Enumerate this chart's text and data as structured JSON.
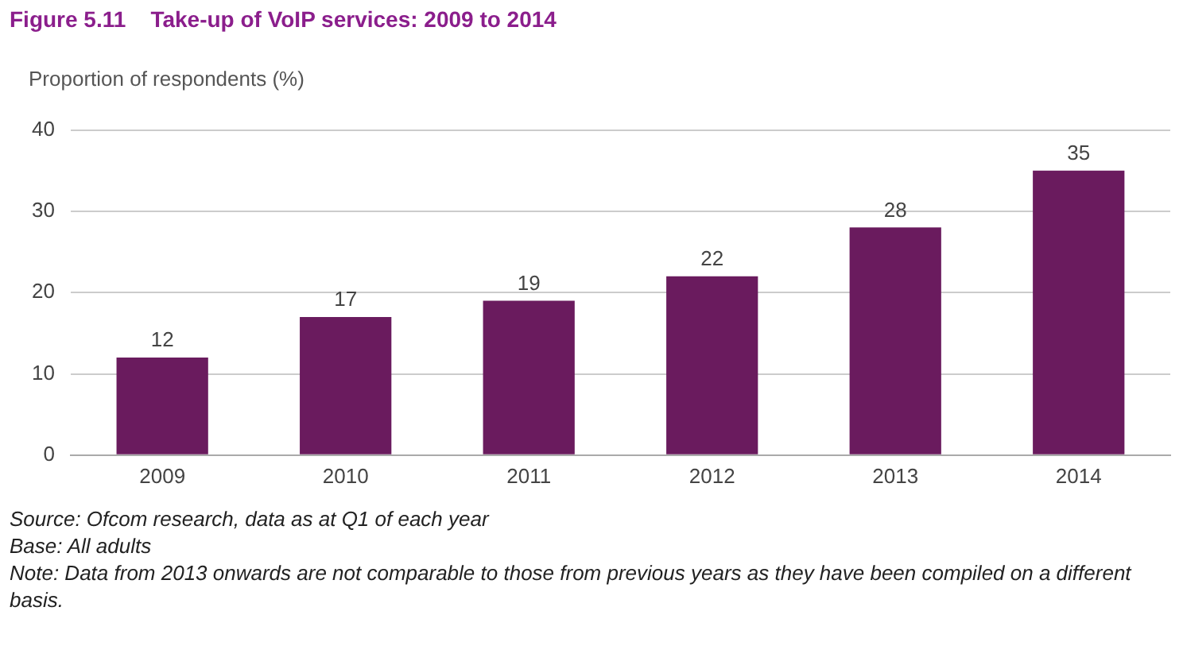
{
  "chart_data": {
    "type": "bar",
    "title": "Figure 5.11    Take-up of VoIP services: 2009 to 2014",
    "ylabel": "Proportion of respondents (%)",
    "categories": [
      "2009",
      "2010",
      "2011",
      "2012",
      "2013",
      "2014"
    ],
    "values": [
      12,
      17,
      19,
      22,
      28,
      35
    ],
    "color": "#6a1b5e",
    "ylim": [
      0,
      40
    ],
    "yticks": [
      0,
      10,
      20,
      30,
      40
    ],
    "grid": "y",
    "data_labels": true,
    "annotations": [
      "Source: Ofcom research, data as at Q1 of each year",
      "Base: All adults",
      "Note: Data from 2013 onwards are not comparable to those from previous years as they have been compiled on a different basis."
    ]
  }
}
